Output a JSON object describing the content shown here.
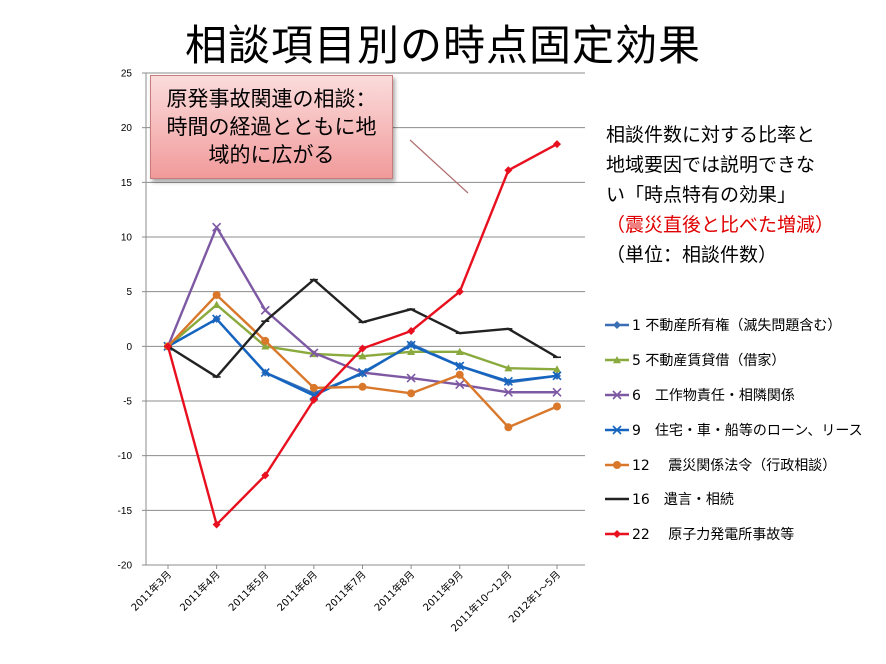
{
  "title": "相談項目別の時点固定効果",
  "callout": [
    "原発事故関連の相談：",
    "時間の経過とともに地",
    "域的に広がる"
  ],
  "side_text": {
    "line1": "相談件数に対する比率と",
    "line2": "地域要因では説明できな",
    "line3": "い「時点特有の効果」",
    "line4": "（震災直後と比べた増減）",
    "line5": "（単位：相談件数）"
  },
  "colors": {
    "accent_red": "#e00000"
  },
  "chart_data": {
    "type": "line",
    "categories": [
      "2011年3月",
      "2011年4月",
      "2011年5月",
      "2011年6月",
      "2011年7月",
      "2011年8月",
      "2011年9月",
      "2011年10～12月",
      "2012年1～5月"
    ],
    "ylim": [
      -20,
      25
    ],
    "yticks": [
      -20,
      -15,
      -10,
      -5,
      0,
      5,
      10,
      15,
      20,
      25
    ],
    "grid": true,
    "legend": "right",
    "series": [
      {
        "name": "1 不動産所有権（滅失問題含む）",
        "color": "#3a6fb5",
        "marker": "diamond",
        "values": [
          0,
          2.5,
          -2.4,
          -4.3,
          -2.5,
          0.2,
          -1.8,
          -3.3,
          -2.7
        ]
      },
      {
        "name": "5 不動産賃貸借（借家）",
        "color": "#8aaa3e",
        "marker": "triangle",
        "values": [
          0,
          3.8,
          0.0,
          -0.7,
          -0.9,
          -0.5,
          -0.5,
          -2.0,
          -2.1
        ]
      },
      {
        "name": "6　工作物責任・相隣関係",
        "color": "#7e59a3",
        "marker": "x",
        "values": [
          0,
          10.9,
          3.3,
          -0.6,
          -2.4,
          -2.9,
          -3.5,
          -4.2,
          -4.2
        ]
      },
      {
        "name": "9　住宅・車・船等のローン、リース",
        "color": "#1565c0",
        "marker": "x",
        "values": [
          0,
          2.5,
          -2.4,
          -4.5,
          -2.4,
          0.1,
          -1.8,
          -3.2,
          -2.7
        ]
      },
      {
        "name": "12　 震災関係法令（行政相談）",
        "color": "#d9782b",
        "marker": "circle",
        "values": [
          0,
          4.7,
          0.5,
          -3.8,
          -3.7,
          -4.3,
          -2.6,
          -7.4,
          -5.5
        ]
      },
      {
        "name": "16　遺言・相続",
        "color": "#222222",
        "marker": "dash",
        "values": [
          0,
          -2.8,
          2.3,
          6.1,
          2.2,
          3.4,
          1.2,
          1.6,
          -1.0
        ]
      },
      {
        "name": "22　 原子力発電所事故等",
        "color": "#e8101e",
        "marker": "diamond",
        "values": [
          0,
          -16.3,
          -11.8,
          -4.9,
          -0.2,
          1.4,
          5.0,
          16.1,
          18.5
        ]
      }
    ]
  }
}
